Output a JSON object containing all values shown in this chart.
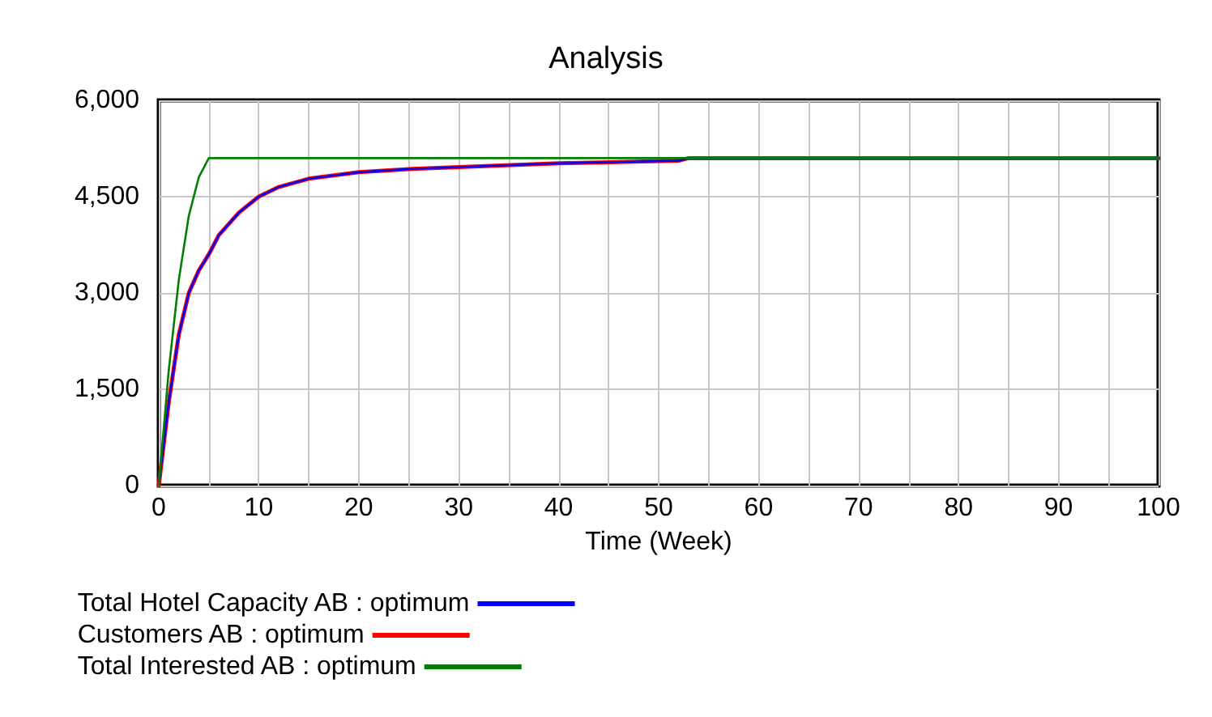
{
  "chart_data": {
    "type": "line",
    "title": "Analysis",
    "xlabel": "Time (Week)",
    "xlim": [
      0,
      100
    ],
    "xticks": [
      0,
      {
        "value": 5,
        "label": null
      },
      10,
      {
        "value": 15,
        "label": null
      },
      20,
      {
        "value": 25,
        "label": null
      },
      30,
      {
        "value": 35,
        "label": null
      },
      40,
      {
        "value": 45,
        "label": null
      },
      50,
      {
        "value": 55,
        "label": null
      },
      60,
      {
        "value": 65,
        "label": null
      },
      70,
      {
        "value": 75,
        "label": null
      },
      80,
      {
        "value": 85,
        "label": null
      },
      90,
      {
        "value": 95,
        "label": null
      },
      100
    ],
    "ylim": [
      0,
      6000
    ],
    "yticks": [
      {
        "value": 0,
        "label": "0"
      },
      {
        "value": 1500,
        "label": "1,500"
      },
      {
        "value": 3000,
        "label": "3,000"
      },
      {
        "value": 4500,
        "label": "4,500"
      },
      {
        "value": 6000,
        "label": "6,000"
      }
    ],
    "grid": true,
    "legend": "bottom",
    "marker": "none",
    "line_style": "solid",
    "series": [
      {
        "name": "Total Hotel Capacity AB : optimum",
        "color": "#0000ff",
        "x": [
          0,
          1,
          2,
          3,
          4,
          5,
          6,
          8,
          10,
          12,
          15,
          20,
          25,
          30,
          40,
          52,
          53,
          100
        ],
        "values": [
          0,
          1300,
          2350,
          3000,
          3350,
          3600,
          3900,
          4250,
          4500,
          4650,
          4780,
          4880,
          4930,
          4960,
          5020,
          5060,
          5100,
          5100
        ]
      },
      {
        "name": "Customers AB : optimum",
        "color": "#ff0000",
        "x": [
          0,
          1,
          2,
          3,
          4,
          5,
          6,
          8,
          10,
          12,
          15,
          20,
          25,
          30,
          40,
          52,
          53,
          100
        ],
        "values": [
          0,
          1300,
          2350,
          3000,
          3350,
          3600,
          3900,
          4250,
          4500,
          4650,
          4780,
          4880,
          4930,
          4960,
          5020,
          5060,
          5100,
          5100
        ]
      },
      {
        "name": "Total Interested AB : optimum",
        "color": "#008000",
        "x": [
          0,
          1,
          2,
          3,
          4,
          5,
          100
        ],
        "values": [
          0,
          1800,
          3200,
          4200,
          4800,
          5100,
          5100
        ]
      }
    ]
  }
}
